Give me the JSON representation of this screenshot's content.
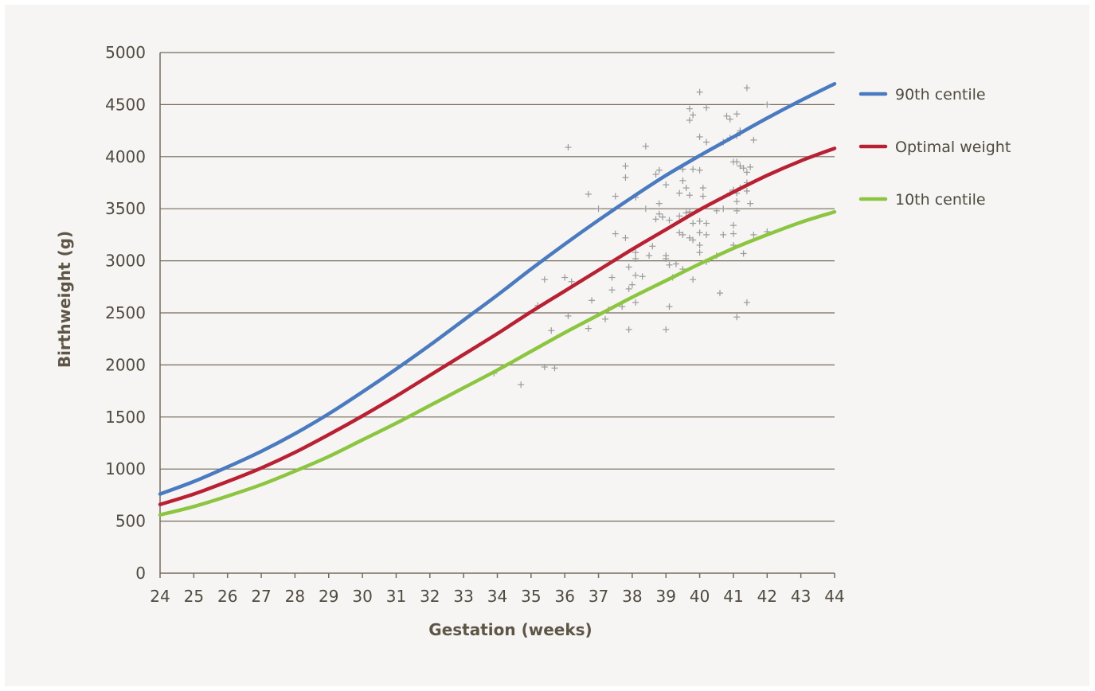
{
  "chart_data": {
    "type": "line",
    "title": "",
    "xlabel": "Gestation (weeks)",
    "ylabel": "Birthweight (g)",
    "xlim": [
      24,
      44
    ],
    "ylim": [
      0,
      5000
    ],
    "x_ticks": [
      24,
      25,
      26,
      27,
      28,
      29,
      30,
      31,
      32,
      33,
      34,
      35,
      36,
      37,
      38,
      39,
      40,
      41,
      42,
      43,
      44
    ],
    "y_ticks": [
      0,
      500,
      1000,
      1500,
      2000,
      2500,
      3000,
      3500,
      4000,
      4500,
      5000
    ],
    "grid": true,
    "legend_position": "right",
    "x": [
      24,
      25,
      26,
      27,
      28,
      29,
      30,
      31,
      32,
      33,
      34,
      35,
      36,
      37,
      38,
      39,
      40,
      41,
      42,
      43,
      44
    ],
    "series": [
      {
        "name": "90th centile",
        "color": "#4a7abf",
        "values": [
          760,
          880,
          1020,
          1170,
          1340,
          1530,
          1740,
          1960,
          2190,
          2430,
          2670,
          2920,
          3160,
          3390,
          3610,
          3820,
          4010,
          4190,
          4370,
          4540,
          4700
        ]
      },
      {
        "name": "Optimal weight",
        "color": "#b82133",
        "values": [
          660,
          760,
          880,
          1010,
          1160,
          1330,
          1510,
          1700,
          1900,
          2100,
          2300,
          2510,
          2710,
          2910,
          3110,
          3300,
          3490,
          3660,
          3820,
          3960,
          4080
        ]
      },
      {
        "name": "10th centile",
        "color": "#8cc540",
        "values": [
          560,
          640,
          740,
          850,
          980,
          1120,
          1280,
          1440,
          1610,
          1780,
          1950,
          2130,
          2310,
          2480,
          2650,
          2810,
          2970,
          3120,
          3250,
          3370,
          3470
        ]
      }
    ],
    "scatter": {
      "name": "observations",
      "color": "#9a9a9a",
      "points": [
        [
          33.9,
          1920
        ],
        [
          34.7,
          1810
        ],
        [
          35.2,
          2570
        ],
        [
          35.4,
          2820
        ],
        [
          35.4,
          1980
        ],
        [
          35.6,
          2330
        ],
        [
          35.7,
          1970
        ],
        [
          36.0,
          2840
        ],
        [
          36.1,
          2470
        ],
        [
          36.2,
          2800
        ],
        [
          36.1,
          4090
        ],
        [
          36.7,
          2350
        ],
        [
          36.7,
          3640
        ],
        [
          36.8,
          2620
        ],
        [
          37.0,
          3500
        ],
        [
          37.2,
          2440
        ],
        [
          37.3,
          2530
        ],
        [
          37.4,
          2720
        ],
        [
          37.4,
          2840
        ],
        [
          37.5,
          3620
        ],
        [
          37.5,
          3260
        ],
        [
          37.7,
          2560
        ],
        [
          37.8,
          3220
        ],
        [
          37.8,
          3910
        ],
        [
          37.8,
          3800
        ],
        [
          37.9,
          2730
        ],
        [
          37.9,
          2340
        ],
        [
          37.9,
          2940
        ],
        [
          38.0,
          2770
        ],
        [
          38.1,
          3080
        ],
        [
          38.1,
          2600
        ],
        [
          38.1,
          2860
        ],
        [
          38.1,
          3020
        ],
        [
          38.1,
          3610
        ],
        [
          38.3,
          2850
        ],
        [
          38.4,
          4100
        ],
        [
          38.4,
          3500
        ],
        [
          38.5,
          3050
        ],
        [
          38.6,
          3140
        ],
        [
          38.7,
          3400
        ],
        [
          38.7,
          3830
        ],
        [
          38.8,
          3870
        ],
        [
          38.8,
          3550
        ],
        [
          38.8,
          3450
        ],
        [
          38.9,
          3420
        ],
        [
          39.0,
          3730
        ],
        [
          39.0,
          3020
        ],
        [
          39.0,
          3050
        ],
        [
          39.0,
          2340
        ],
        [
          39.1,
          3390
        ],
        [
          39.1,
          2960
        ],
        [
          39.1,
          2560
        ],
        [
          39.2,
          2840
        ],
        [
          39.3,
          2970
        ],
        [
          39.4,
          3430
        ],
        [
          39.4,
          3650
        ],
        [
          39.4,
          3270
        ],
        [
          39.5,
          3880
        ],
        [
          39.5,
          3770
        ],
        [
          39.5,
          3250
        ],
        [
          39.5,
          2920
        ],
        [
          39.6,
          3460
        ],
        [
          39.6,
          3700
        ],
        [
          39.7,
          4460
        ],
        [
          39.7,
          4350
        ],
        [
          39.7,
          3630
        ],
        [
          39.7,
          3470
        ],
        [
          39.7,
          3220
        ],
        [
          39.8,
          4400
        ],
        [
          39.8,
          3880
        ],
        [
          39.8,
          3360
        ],
        [
          39.8,
          3200
        ],
        [
          39.8,
          2820
        ],
        [
          40.0,
          4620
        ],
        [
          40.0,
          4190
        ],
        [
          40.0,
          3870
        ],
        [
          40.0,
          3270
        ],
        [
          40.0,
          3150
        ],
        [
          40.0,
          3080
        ],
        [
          40.0,
          3380
        ],
        [
          40.1,
          3700
        ],
        [
          40.1,
          3620
        ],
        [
          40.2,
          4470
        ],
        [
          40.2,
          4140
        ],
        [
          40.2,
          3360
        ],
        [
          40.2,
          3250
        ],
        [
          40.2,
          2990
        ],
        [
          40.5,
          3480
        ],
        [
          40.5,
          3050
        ],
        [
          40.6,
          2690
        ],
        [
          40.7,
          4140
        ],
        [
          40.7,
          3500
        ],
        [
          40.7,
          3250
        ],
        [
          40.8,
          4390
        ],
        [
          40.9,
          4180
        ],
        [
          40.9,
          4360
        ],
        [
          40.9,
          3650
        ],
        [
          41.0,
          3950
        ],
        [
          41.0,
          3340
        ],
        [
          41.0,
          3260
        ],
        [
          41.0,
          3150
        ],
        [
          41.0,
          3680
        ],
        [
          41.1,
          4410
        ],
        [
          41.1,
          4200
        ],
        [
          41.1,
          3950
        ],
        [
          41.1,
          3650
        ],
        [
          41.1,
          3570
        ],
        [
          41.1,
          3480
        ],
        [
          41.1,
          2460
        ],
        [
          41.2,
          4230
        ],
        [
          41.2,
          4250
        ],
        [
          41.2,
          3910
        ],
        [
          41.2,
          3700
        ],
        [
          41.3,
          3890
        ],
        [
          41.3,
          3070
        ],
        [
          41.4,
          4660
        ],
        [
          41.4,
          3850
        ],
        [
          41.4,
          3750
        ],
        [
          41.4,
          3670
        ],
        [
          41.4,
          2600
        ],
        [
          41.5,
          3900
        ],
        [
          41.5,
          3550
        ],
        [
          41.6,
          4160
        ],
        [
          41.6,
          3250
        ],
        [
          42.0,
          4500
        ],
        [
          42.0,
          3280
        ]
      ]
    }
  }
}
